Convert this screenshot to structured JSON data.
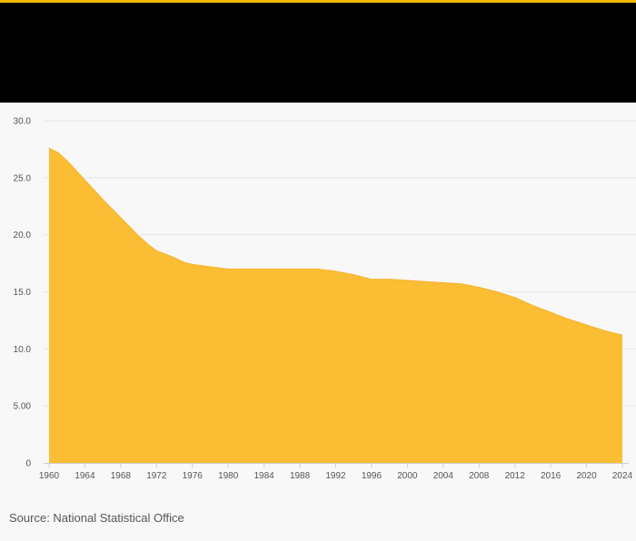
{
  "colors": {
    "accent": "#f5b800",
    "header_bg": "#000000",
    "area_fill": "#fbbd33",
    "area_stroke": "#f5b32e",
    "gridline": "#e6e6e6",
    "axis": "#cccccc",
    "background": "#f8f8f8"
  },
  "source": "Source: National Statistical Office",
  "chart_data": {
    "type": "area",
    "title": "",
    "xlabel": "",
    "ylabel": "",
    "xlim": [
      1960,
      2024
    ],
    "ylim": [
      0,
      30
    ],
    "grid": true,
    "legend": "none",
    "x_ticks": [
      1960,
      1964,
      1968,
      1972,
      1976,
      1980,
      1984,
      1988,
      1992,
      1996,
      2000,
      2004,
      2008,
      2012,
      2016,
      2020,
      2024
    ],
    "x_tick_labels": [
      "1960",
      "1964",
      "1968",
      "1972",
      "1976",
      "1980",
      "1984",
      "1988",
      "1992",
      "1996",
      "2000",
      "2004",
      "2008",
      "2012",
      "2016",
      "2020",
      "2024"
    ],
    "y_ticks": [
      0,
      5,
      10,
      15,
      20,
      25,
      30
    ],
    "y_tick_labels": [
      "0",
      "5.00",
      "10.0",
      "15.0",
      "20.0",
      "25.0",
      "30.0"
    ],
    "series": [
      {
        "x": [
          1960,
          1961,
          1962,
          1964,
          1966,
          1968,
          1970,
          1971,
          1972,
          1974,
          1975,
          1976,
          1978,
          1980,
          1984,
          1988,
          1990,
          1992,
          1994,
          1995,
          1996,
          1998,
          2000,
          2002,
          2004,
          2006,
          2008,
          2010,
          2012,
          2014,
          2016,
          2018,
          2020,
          2022,
          2024
        ],
        "values": [
          27.6,
          27.2,
          26.5,
          24.8,
          23.1,
          21.5,
          19.9,
          19.2,
          18.6,
          18.0,
          17.6,
          17.4,
          17.2,
          17.0,
          17.0,
          17.0,
          17.0,
          16.8,
          16.5,
          16.3,
          16.1,
          16.1,
          16.0,
          15.9,
          15.8,
          15.7,
          15.4,
          15.0,
          14.5,
          13.8,
          13.2,
          12.6,
          12.1,
          11.6,
          11.2
        ]
      }
    ]
  }
}
